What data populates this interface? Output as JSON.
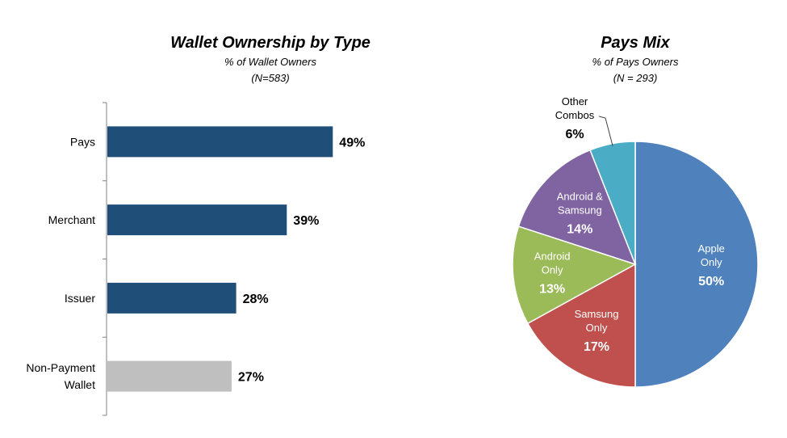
{
  "chart_data": [
    {
      "type": "bar",
      "orientation": "horizontal",
      "title": "Wallet Ownership by Type",
      "subtitle": "% of Wallet Owners",
      "subtitle2": "(N=583)",
      "categories": [
        [
          "Pays"
        ],
        [
          "Merchant"
        ],
        [
          "Issuer"
        ],
        [
          "Non-Payment",
          "Wallet"
        ]
      ],
      "values": [
        49,
        39,
        28,
        27
      ],
      "value_labels": [
        "49%",
        "39%",
        "28%",
        "27%"
      ],
      "colors": [
        "#1f4e79",
        "#1f4e79",
        "#1f4e79",
        "#bfbfbf"
      ],
      "xlim": [
        0,
        100
      ]
    },
    {
      "type": "pie",
      "title": "Pays Mix",
      "subtitle": "% of Pays Owners",
      "subtitle2": "(N = 293)",
      "slices": [
        {
          "label": [
            "Apple",
            "Only"
          ],
          "value": 50,
          "value_label": "50%",
          "color": "#4f81bd",
          "text_color": "#ffffff"
        },
        {
          "label": [
            "Samsung",
            "Only"
          ],
          "value": 17,
          "value_label": "17%",
          "color": "#c0504d",
          "text_color": "#ffffff"
        },
        {
          "label": [
            "Android",
            "Only"
          ],
          "value": 13,
          "value_label": "13%",
          "color": "#9bbb59",
          "text_color": "#ffffff"
        },
        {
          "label": [
            "Android &",
            "Samsung"
          ],
          "value": 14,
          "value_label": "14%",
          "color": "#8064a2",
          "text_color": "#ffffff"
        },
        {
          "label": [
            "Other",
            "Combos"
          ],
          "value": 6,
          "value_label": "6%",
          "color": "#4bacc6",
          "text_color": "#000000"
        }
      ]
    }
  ]
}
